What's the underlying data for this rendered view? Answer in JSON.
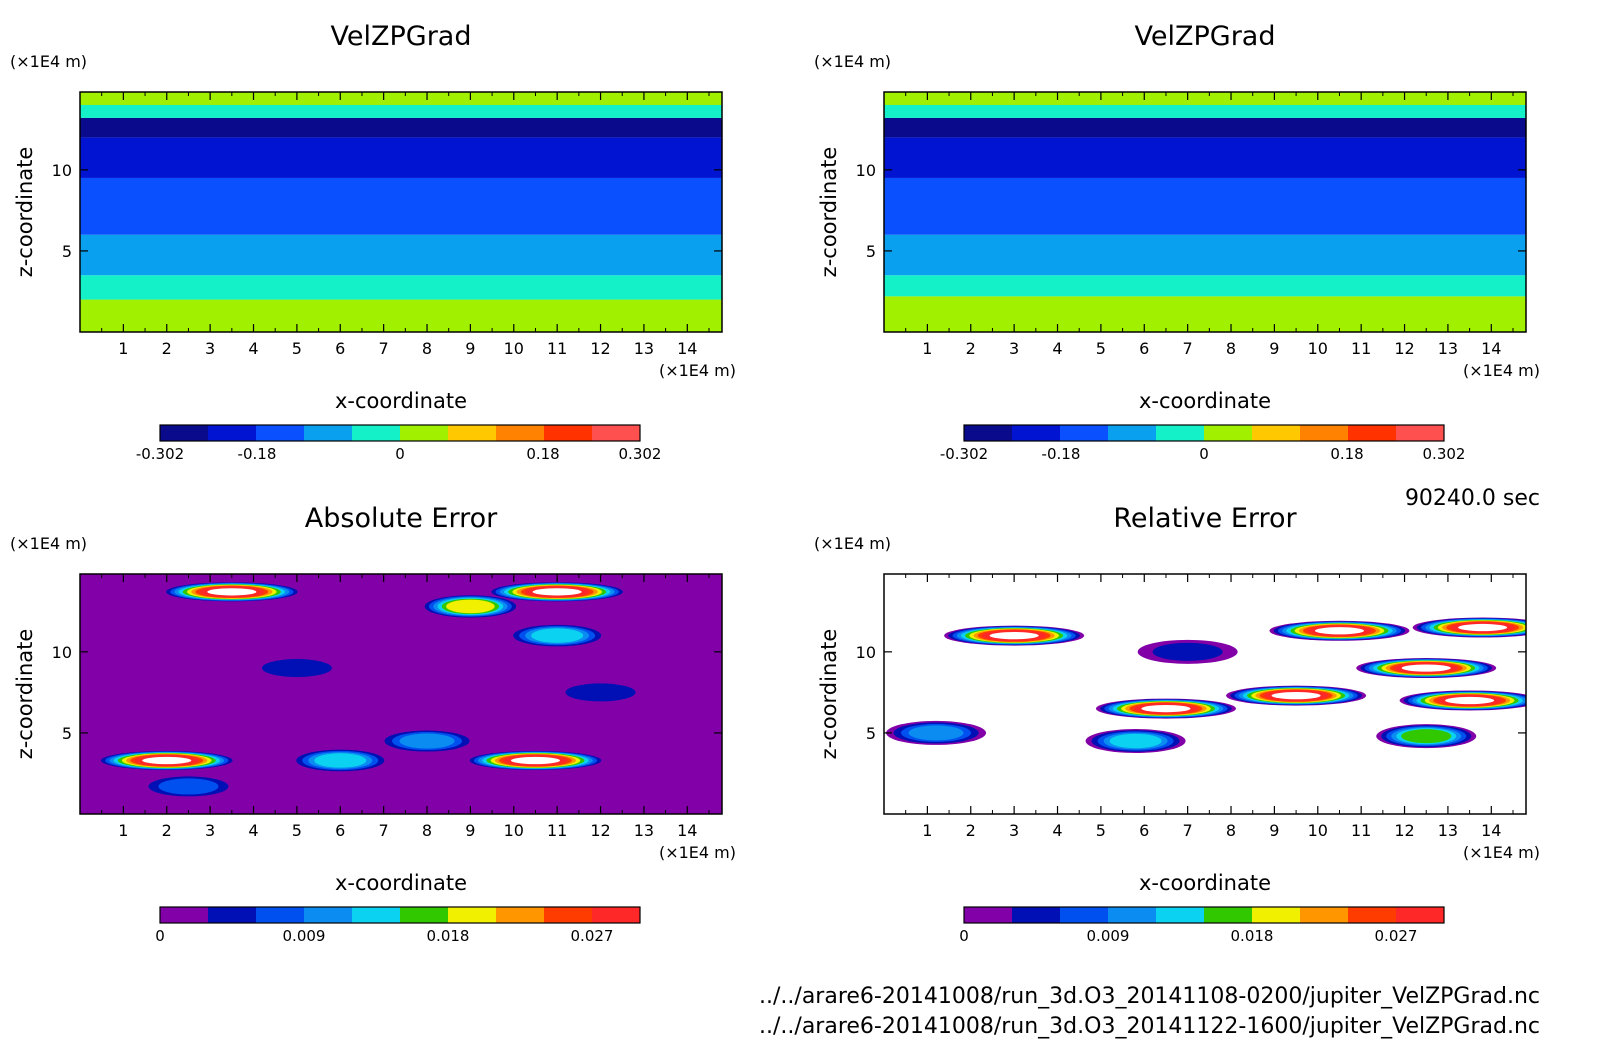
{
  "time_label": "90240.0 sec",
  "files": [
    "../../arare6-20141008/run_3d.O3_20141108-0200/jupiter_VelZPGrad.nc",
    "../../arare6-20141008/run_3d.O3_20141122-1600/jupiter_VelZPGrad.nc"
  ],
  "colors": {
    "velocity_scale": [
      "#0a0a8c",
      "#0014d2",
      "#0a50ff",
      "#0aa0f0",
      "#14f0c8",
      "#a0f000",
      "#ffc800",
      "#ff8200",
      "#ff3200",
      "#ff5050"
    ],
    "error_scale": [
      "#8200a8",
      "#0010b4",
      "#0050f0",
      "#0a8cf0",
      "#0ad2f0",
      "#32c800",
      "#f0f000",
      "#ff9600",
      "#ff3c00",
      "#ff2828"
    ]
  },
  "chart_data": [
    {
      "type": "heatmap",
      "title": "VelZPGrad",
      "xlabel": "x-coordinate",
      "ylabel": "z-coordinate",
      "x_unit": "(×1E4 m)",
      "y_unit": "(×1E4 m)",
      "xlim": [
        0,
        14.8
      ],
      "ylim": [
        0,
        14.8
      ],
      "xticks": [
        "1",
        "2",
        "3",
        "4",
        "5",
        "6",
        "7",
        "8",
        "9",
        "10",
        "11",
        "12",
        "13",
        "14"
      ],
      "yticks": [
        "5",
        "10"
      ],
      "colorbar_ticks": [
        "-0.302",
        "-0.18",
        "0",
        "0.18",
        "0.302"
      ],
      "colorbar_range": [
        -0.302,
        0.302
      ],
      "bands": [
        {
          "z_min": 0.0,
          "z_max": 2.0,
          "value": 0.03
        },
        {
          "z_min": 2.0,
          "z_max": 3.5,
          "value": -0.03
        },
        {
          "z_min": 3.5,
          "z_max": 6.0,
          "value": -0.09
        },
        {
          "z_min": 6.0,
          "z_max": 9.5,
          "value": -0.15
        },
        {
          "z_min": 9.5,
          "z_max": 12.0,
          "value": -0.21
        },
        {
          "z_min": 12.0,
          "z_max": 13.2,
          "value": -0.27
        },
        {
          "z_min": 13.2,
          "z_max": 14.8,
          "value": -0.03
        },
        {
          "z_min": 14.0,
          "z_max": 14.8,
          "value": 0.03
        }
      ]
    },
    {
      "type": "heatmap",
      "title": "VelZPGrad",
      "xlabel": "x-coordinate",
      "ylabel": "z-coordinate",
      "x_unit": "(×1E4 m)",
      "y_unit": "(×1E4 m)",
      "xlim": [
        0,
        14.8
      ],
      "ylim": [
        0,
        14.8
      ],
      "xticks": [
        "1",
        "2",
        "3",
        "4",
        "5",
        "6",
        "7",
        "8",
        "9",
        "10",
        "11",
        "12",
        "13",
        "14"
      ],
      "yticks": [
        "5",
        "10"
      ],
      "colorbar_ticks": [
        "-0.302",
        "-0.18",
        "0",
        "0.18",
        "0.302"
      ],
      "colorbar_range": [
        -0.302,
        0.302
      ],
      "bands": [
        {
          "z_min": 0.0,
          "z_max": 2.2,
          "value": 0.03
        },
        {
          "z_min": 2.2,
          "z_max": 3.5,
          "value": -0.03
        },
        {
          "z_min": 3.5,
          "z_max": 6.0,
          "value": -0.09
        },
        {
          "z_min": 6.0,
          "z_max": 9.5,
          "value": -0.15
        },
        {
          "z_min": 9.5,
          "z_max": 12.0,
          "value": -0.21
        },
        {
          "z_min": 12.0,
          "z_max": 13.2,
          "value": -0.27
        },
        {
          "z_min": 13.2,
          "z_max": 14.8,
          "value": -0.03
        },
        {
          "z_min": 14.0,
          "z_max": 14.8,
          "value": 0.03
        }
      ]
    },
    {
      "type": "heatmap",
      "title": "Absolute Error",
      "xlabel": "x-coordinate",
      "ylabel": "z-coordinate",
      "x_unit": "(×1E4 m)",
      "y_unit": "(×1E4 m)",
      "xlim": [
        0,
        14.8
      ],
      "ylim": [
        0,
        14.8
      ],
      "xticks": [
        "1",
        "2",
        "3",
        "4",
        "5",
        "6",
        "7",
        "8",
        "9",
        "10",
        "11",
        "12",
        "13",
        "14"
      ],
      "yticks": [
        "5",
        "10"
      ],
      "colorbar_ticks": [
        "0",
        "0.009",
        "0.018",
        "0.027"
      ],
      "colorbar_range": [
        0,
        0.03
      ],
      "features": [
        {
          "x": 3.5,
          "z": 13.7,
          "value": 0.031
        },
        {
          "x": 11.0,
          "z": 13.7,
          "value": 0.031
        },
        {
          "x": 9.0,
          "z": 12.8,
          "value": 0.02
        },
        {
          "x": 11.0,
          "z": 11.0,
          "value": 0.014
        },
        {
          "x": 2.0,
          "z": 3.3,
          "value": 0.031
        },
        {
          "x": 10.5,
          "z": 3.3,
          "value": 0.031
        },
        {
          "x": 6.0,
          "z": 3.3,
          "value": 0.016
        },
        {
          "x": 8.0,
          "z": 4.5,
          "value": 0.012
        },
        {
          "x": 2.5,
          "z": 1.7,
          "value": 0.008
        },
        {
          "x": 5.0,
          "z": 9.0,
          "value": 0.007
        },
        {
          "x": 12.0,
          "z": 7.5,
          "value": 0.006
        }
      ]
    },
    {
      "type": "heatmap",
      "title": "Relative Error",
      "xlabel": "x-coordinate",
      "ylabel": "z-coordinate",
      "x_unit": "(×1E4 m)",
      "y_unit": "(×1E4 m)",
      "xlim": [
        0,
        14.8
      ],
      "ylim": [
        0,
        14.8
      ],
      "xticks": [
        "1",
        "2",
        "3",
        "4",
        "5",
        "6",
        "7",
        "8",
        "9",
        "10",
        "11",
        "12",
        "13",
        "14"
      ],
      "yticks": [
        "5",
        "10"
      ],
      "colorbar_ticks": [
        "0",
        "0.009",
        "0.018",
        "0.027"
      ],
      "colorbar_range": [
        0,
        0.03
      ],
      "features": [
        {
          "x": 7.0,
          "z": 10.0,
          "value": 0.006
        },
        {
          "x": 3.0,
          "z": 11.0,
          "value": 0.031
        },
        {
          "x": 10.5,
          "z": 11.3,
          "value": 0.031
        },
        {
          "x": 12.5,
          "z": 9.0,
          "value": 0.031
        },
        {
          "x": 9.5,
          "z": 7.3,
          "value": 0.031
        },
        {
          "x": 6.5,
          "z": 6.5,
          "value": 0.031
        },
        {
          "x": 13.5,
          "z": 7.0,
          "value": 0.031
        },
        {
          "x": 13.8,
          "z": 11.5,
          "value": 0.031
        },
        {
          "x": 1.2,
          "z": 5.0,
          "value": 0.012
        },
        {
          "x": 5.8,
          "z": 4.5,
          "value": 0.014
        },
        {
          "x": 12.5,
          "z": 4.8,
          "value": 0.018
        }
      ]
    }
  ]
}
